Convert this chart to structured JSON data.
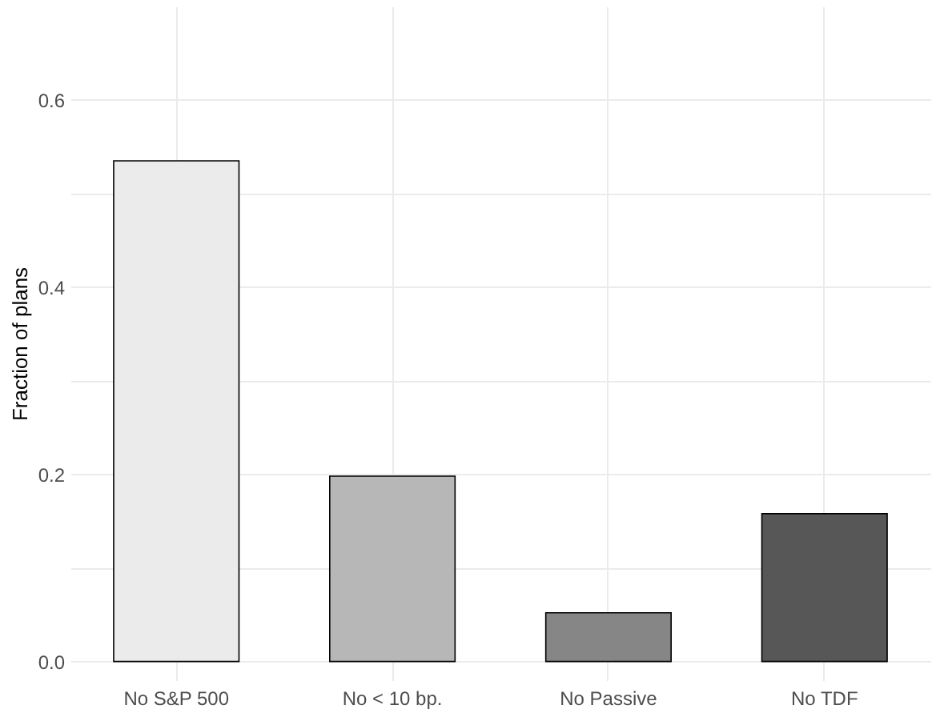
{
  "chart_data": {
    "type": "bar",
    "ylabel": "Fraction of plans",
    "categories": [
      "No S&P 500",
      "No < 10 bp.",
      "No Passive",
      "No TDF"
    ],
    "values": [
      0.535,
      0.198,
      0.052,
      0.158
    ],
    "colors": [
      "#ebebeb",
      "#b7b7b7",
      "#868686",
      "#575757"
    ],
    "ylim": [
      -0.02,
      0.7
    ],
    "yticks": [
      {
        "value": 0,
        "label": "0.0"
      },
      {
        "value": 0.1,
        "label": null
      },
      {
        "value": 0.2,
        "label": "0.2"
      },
      {
        "value": 0.3,
        "label": null
      },
      {
        "value": 0.4,
        "label": "0.4"
      },
      {
        "value": 0.5,
        "label": null
      },
      {
        "value": 0.6,
        "label": "0.6"
      }
    ],
    "grid": true
  }
}
